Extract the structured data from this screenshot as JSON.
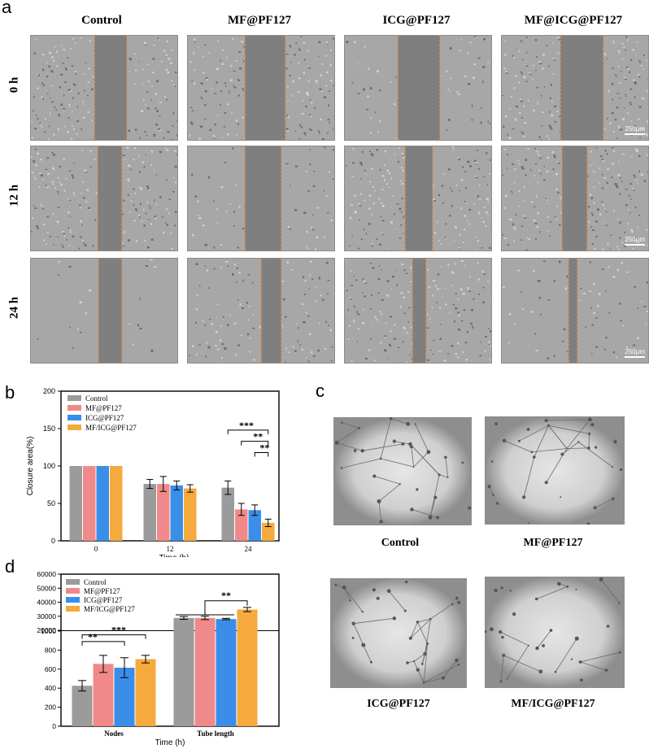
{
  "panel_a": {
    "label": "a",
    "columns": [
      "Control",
      "MF@PF127",
      "ICG@PF127",
      "MF@ICG@PF127"
    ],
    "rows": [
      "0 h",
      "12 h",
      "24 h"
    ],
    "scale_bar": "250μm"
  },
  "panel_b": {
    "label": "b"
  },
  "panel_c": {
    "label": "c",
    "images": [
      "Control",
      "MF@PF127",
      "ICG@PF127",
      "MF/ICG@PF127"
    ]
  },
  "panel_d": {
    "label": "d"
  },
  "colors": {
    "control": "#9b9b9b",
    "mf": "#f08a8a",
    "icg": "#3a8ee8",
    "mficg": "#f6a93c"
  },
  "chart_data": [
    {
      "type": "bar",
      "panel": "b",
      "title": "",
      "xlabel": "Time (h)",
      "ylabel": "Closure area(%)",
      "categories": [
        "0",
        "12",
        "24"
      ],
      "ylim": [
        0,
        200
      ],
      "yticks": [
        0,
        50,
        100,
        150,
        200
      ],
      "legend_position": "top-left",
      "series": [
        {
          "name": "Control",
          "values": [
            100,
            76,
            71
          ],
          "errors": [
            0,
            6,
            9
          ]
        },
        {
          "name": "MF@PF127",
          "values": [
            100,
            76,
            42
          ],
          "errors": [
            0,
            10,
            8
          ]
        },
        {
          "name": "ICG@PF127",
          "values": [
            100,
            74,
            41
          ],
          "errors": [
            0,
            6,
            7
          ]
        },
        {
          "name": "MF/ICG@PF127",
          "values": [
            100,
            70,
            24
          ],
          "errors": [
            0,
            5,
            5
          ]
        }
      ],
      "significance": [
        "***",
        "**",
        "**"
      ]
    },
    {
      "type": "bar",
      "panel": "d",
      "title": "",
      "xlabel": "Time (h)",
      "categories": [
        "Nodes",
        "Tube length"
      ],
      "axis_break": true,
      "ylim_lower": [
        0,
        1000
      ],
      "yticks_lower": [
        0,
        200,
        400,
        600,
        800,
        1000
      ],
      "ylim_upper": [
        20000,
        60000
      ],
      "yticks_upper": [
        20000,
        30000,
        40000,
        50000,
        60000
      ],
      "legend_position": "top-left",
      "series": [
        {
          "name": "Control",
          "values": [
            425,
            28800
          ],
          "errors": [
            55,
            1000
          ]
        },
        {
          "name": "MF@PF127",
          "values": [
            655,
            28800
          ],
          "errors": [
            90,
            1200
          ]
        },
        {
          "name": "ICG@PF127",
          "values": [
            615,
            28000
          ],
          "errors": [
            105,
            500
          ]
        },
        {
          "name": "MF/ICG@PF127",
          "values": [
            705,
            34800
          ],
          "errors": [
            40,
            1500
          ]
        }
      ],
      "significance": [
        "**",
        "***",
        "**"
      ]
    }
  ]
}
